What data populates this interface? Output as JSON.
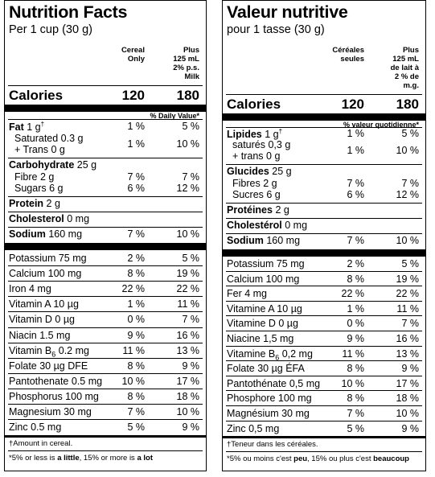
{
  "en": {
    "title": "Nutrition Facts",
    "subtitle": "Per 1 cup (30 g)",
    "col1": [
      "Cereal",
      "Only"
    ],
    "col2": [
      "Plus",
      "125 mL",
      "2% p.s.",
      "Milk"
    ],
    "calories_label": "Calories",
    "calories": [
      "120",
      "180"
    ],
    "dv_header": "% Daily Value*",
    "fat": {
      "name": "Fat",
      "amount": "1 g",
      "mark": "†",
      "v1": "1 %",
      "v2": "5 %"
    },
    "saturated": "Saturated 0.3 g",
    "trans": "+ Trans 0 g",
    "sat_v1": "1 %",
    "sat_v2": "10 %",
    "carb": {
      "name": "Carbohydrate",
      "amount": "25 g"
    },
    "fibre": {
      "label": "Fibre 2 g",
      "v1": "7 %",
      "v2": "7 %"
    },
    "sugars": {
      "label": "Sugars 6 g",
      "v1": "6 %",
      "v2": "12 %"
    },
    "protein": {
      "name": "Protein",
      "amount": "2 g"
    },
    "cholesterol": {
      "name": "Cholesterol",
      "amount": "0 mg"
    },
    "sodium": {
      "name": "Sodium",
      "amount": "160 mg",
      "v1": "7 %",
      "v2": "10 %"
    },
    "minerals": [
      {
        "label": "Potassium 75 mg",
        "v1": "2 %",
        "v2": "5 %"
      },
      {
        "label": "Calcium 100 mg",
        "v1": "8 %",
        "v2": "19 %"
      },
      {
        "label": "Iron 4 mg",
        "v1": "22 %",
        "v2": "22 %"
      },
      {
        "label": "Vitamin A 10 µg",
        "v1": "1 %",
        "v2": "11 %"
      },
      {
        "label": "Vitamin D 0 µg",
        "v1": "0 %",
        "v2": "7 %"
      },
      {
        "label": "Niacin 1.5 mg",
        "v1": "9 %",
        "v2": "16 %"
      },
      {
        "label": "Vitamin B",
        "sub": "6",
        "after": " 0.2 mg",
        "v1": "11 %",
        "v2": "13 %"
      },
      {
        "label": "Folate 30 µg DFE",
        "v1": "8 %",
        "v2": "9 %"
      },
      {
        "label": "Pantothenate 0.5 mg",
        "v1": "10 %",
        "v2": "17 %"
      },
      {
        "label": "Phosphorus 100 mg",
        "v1": "8 %",
        "v2": "18 %"
      },
      {
        "label": "Magnesium 30 mg",
        "v1": "7 %",
        "v2": "10 %"
      },
      {
        "label": "Zinc 0.5 mg",
        "v1": "5 %",
        "v2": "9 %"
      }
    ],
    "footnote1": "†Amount in cereal.",
    "footnote2_a": "*5% or less is ",
    "footnote2_b": "a little",
    "footnote2_c": ", 15% or more is ",
    "footnote2_d": "a lot"
  },
  "fr": {
    "title": "Valeur nutritive",
    "subtitle": "pour 1 tasse (30 g)",
    "col1": [
      "Céréales",
      "seules"
    ],
    "col2": [
      "Plus",
      "125 mL",
      "de lait à",
      "2 % de",
      "m.g."
    ],
    "calories_label": "Calories",
    "calories": [
      "120",
      "180"
    ],
    "dv_header": "% valeur quotidienne*",
    "fat": {
      "name": "Lipides",
      "amount": "1 g",
      "mark": "†",
      "v1": "1 %",
      "v2": "5 %"
    },
    "saturated": "saturés 0,3 g",
    "trans": "+ trans 0 g",
    "sat_v1": "1 %",
    "sat_v2": "10 %",
    "carb": {
      "name": "Glucides",
      "amount": "25 g"
    },
    "fibre": {
      "label": "Fibres 2 g",
      "v1": "7 %",
      "v2": "7 %"
    },
    "sugars": {
      "label": "Sucres 6 g",
      "v1": "6 %",
      "v2": "12 %"
    },
    "protein": {
      "name": "Protéines",
      "amount": "2 g"
    },
    "cholesterol": {
      "name": "Cholestérol",
      "amount": "0 mg"
    },
    "sodium": {
      "name": "Sodium",
      "amount": "160 mg",
      "v1": "7 %",
      "v2": "10 %"
    },
    "minerals": [
      {
        "label": "Potassium 75 mg",
        "v1": "2 %",
        "v2": "5 %"
      },
      {
        "label": "Calcium 100 mg",
        "v1": "8 %",
        "v2": "19 %"
      },
      {
        "label": "Fer 4 mg",
        "v1": "22 %",
        "v2": "22 %"
      },
      {
        "label": "Vitamine A 10 µg",
        "v1": "1 %",
        "v2": "11 %"
      },
      {
        "label": "Vitamine D 0 µg",
        "v1": "0 %",
        "v2": "7 %"
      },
      {
        "label": "Niacine 1,5 mg",
        "v1": "9 %",
        "v2": "16 %"
      },
      {
        "label": "Vitamine B",
        "sub": "6",
        "after": " 0,2 mg",
        "v1": "11 %",
        "v2": "13 %"
      },
      {
        "label": "Folate 30 µg ÉFA",
        "v1": "8 %",
        "v2": "9 %"
      },
      {
        "label": "Pantothénate 0,5 mg",
        "v1": "10 %",
        "v2": "17 %"
      },
      {
        "label": "Phosphore 100 mg",
        "v1": "8 %",
        "v2": "18 %"
      },
      {
        "label": "Magnésium 30 mg",
        "v1": "7 %",
        "v2": "10 %"
      },
      {
        "label": "Zinc 0,5 mg",
        "v1": "5 %",
        "v2": "9 %"
      }
    ],
    "footnote1": "†Teneur dans les céréales.",
    "footnote2_a": "*5% ou moins c'est ",
    "footnote2_b": "peu",
    "footnote2_c": ", 15% ou plus c'est ",
    "footnote2_d": "beaucoup"
  }
}
